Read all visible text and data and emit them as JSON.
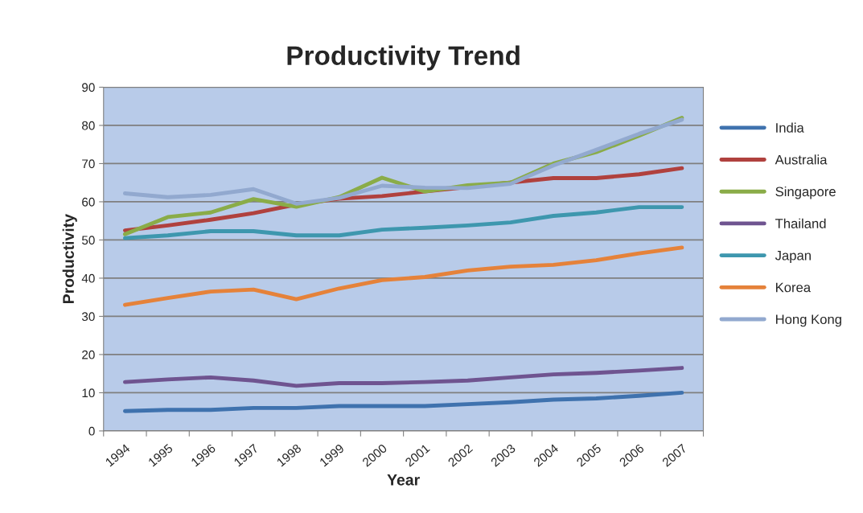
{
  "chart_data": {
    "type": "line",
    "title": "Productivity Trend",
    "xlabel": "Year",
    "ylabel": "Productivity",
    "categories": [
      "1994",
      "1995",
      "1996",
      "1997",
      "1998",
      "1999",
      "2000",
      "2001",
      "2002",
      "2003",
      "2004",
      "2005",
      "2006",
      "2007"
    ],
    "series": [
      {
        "name": "India",
        "color": "#3f72ae",
        "values": [
          5.2,
          5.5,
          5.5,
          6,
          6,
          6.5,
          6.5,
          6.5,
          7,
          7.5,
          8.2,
          8.5,
          9.2,
          10
        ]
      },
      {
        "name": "Australia",
        "color": "#b0413e",
        "values": [
          52.5,
          53.8,
          55.3,
          57,
          59.3,
          60.8,
          61.5,
          62.7,
          null,
          null,
          66.2,
          66.2,
          67.2,
          68.8
        ]
      },
      {
        "name": "Singapore",
        "color": "#8aac48",
        "values": [
          51.5,
          56,
          57.2,
          60.7,
          58.7,
          61.2,
          66.3,
          62.7,
          64.3,
          65,
          70,
          73,
          77.3,
          82
        ]
      },
      {
        "name": "Thailand",
        "color": "#6f5490",
        "values": [
          12.8,
          13.5,
          14,
          13.2,
          11.8,
          12.5,
          12.5,
          12.8,
          13.2,
          14,
          14.8,
          15.2,
          15.8,
          16.5
        ]
      },
      {
        "name": "Japan",
        "color": "#3e97ae",
        "values": [
          50.5,
          51.2,
          52.3,
          52.3,
          51.2,
          51.2,
          52.7,
          53.2,
          53.8,
          54.6,
          56.3,
          57.2,
          58.6,
          58.6
        ]
      },
      {
        "name": "Korea",
        "color": "#e5823a",
        "values": [
          33,
          34.8,
          36.5,
          37,
          34.5,
          37.3,
          39.5,
          40.3,
          42,
          43,
          43.5,
          44.7,
          46.5,
          48
        ]
      },
      {
        "name": "Hong Kong",
        "color": "#92a9cf",
        "values": [
          62.2,
          61.2,
          61.8,
          63.3,
          59.5,
          61,
          64.2,
          63.7,
          63.6,
          64.7,
          69.5,
          73.6,
          77.8,
          81.5
        ]
      }
    ],
    "ylim": [
      0,
      90
    ],
    "yticks": [
      0,
      10,
      20,
      30,
      40,
      50,
      60,
      70,
      80,
      90
    ],
    "grid": "y",
    "legend": "right",
    "marker": "none",
    "line_style": "solid"
  }
}
